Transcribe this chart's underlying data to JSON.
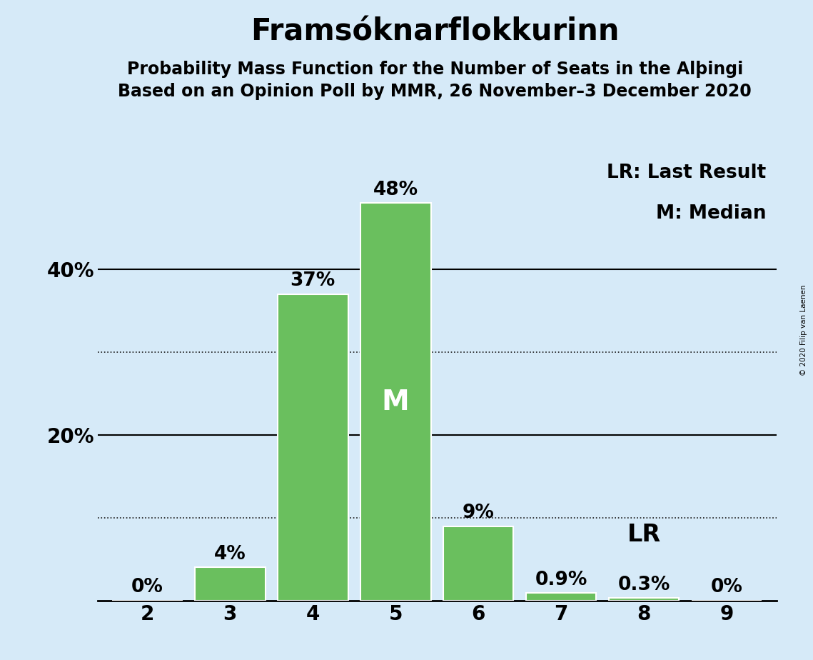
{
  "title": "Framsóknarflokkurinn",
  "subtitle1": "Probability Mass Function for the Number of Seats in the Alþingi",
  "subtitle2": "Based on an Opinion Poll by MMR, 26 November–3 December 2020",
  "copyright": "© 2020 Filip van Laenen",
  "seats": [
    2,
    3,
    4,
    5,
    6,
    7,
    8,
    9
  ],
  "probabilities": [
    0.0,
    4.0,
    37.0,
    48.0,
    9.0,
    0.9,
    0.3,
    0.0
  ],
  "bar_color": "#6abf5e",
  "bar_edge_color": "#ffffff",
  "background_color": "#d6eaf8",
  "median_seat": 5,
  "last_result_seat": 8,
  "median_label": "M",
  "lr_label": "LR",
  "legend_lr": "LR: Last Result",
  "legend_m": "M: Median",
  "ylim": [
    0,
    55
  ],
  "solid_yticks": [
    20,
    40
  ],
  "dotted_yticks": [
    10,
    30
  ],
  "title_fontsize": 30,
  "subtitle_fontsize": 17,
  "tick_fontsize": 20,
  "legend_fontsize": 19,
  "bar_label_fontsize": 19,
  "median_label_fontsize": 28,
  "lr_label_fontsize": 24
}
